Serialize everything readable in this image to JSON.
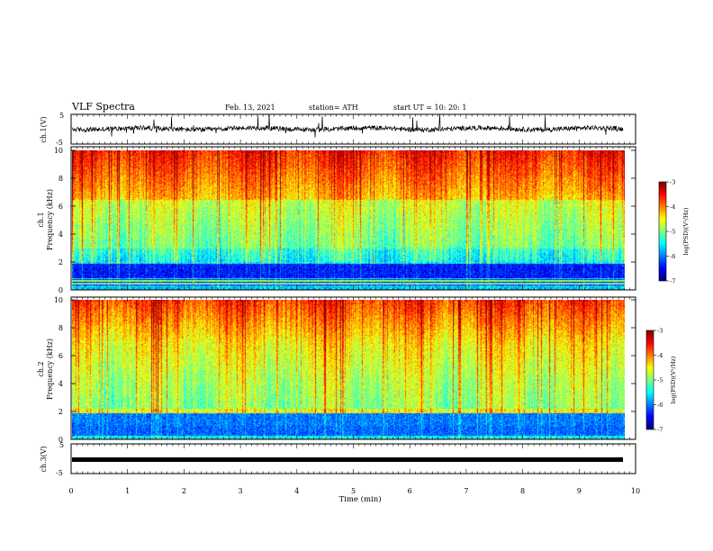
{
  "header": {
    "title": "VLF Spectra",
    "date": "Feb. 13, 2021",
    "station": "station= ATH",
    "start": "start  UT =   10: 20: 1"
  },
  "chart_data": [
    {
      "type": "line",
      "panel": "waveform-ch1",
      "ylabel": "ch.1(V)",
      "ylim": [
        -5,
        5
      ],
      "yticks": [
        "5",
        "-5"
      ],
      "x": [
        0,
        10
      ],
      "description_values": {
        "baseline_v": 0,
        "typical_amplitude_v": 1.5
      }
    },
    {
      "type": "heatmap",
      "panel": "spectrogram-ch1",
      "ylabel": "ch.1\nFrequency (kHz)",
      "ylim": [
        0,
        10
      ],
      "yticks": [
        "0",
        "2",
        "4",
        "6",
        "8",
        "10"
      ],
      "xlim": [
        0,
        10
      ],
      "colorbar": {
        "label": "log(PSD)(V²/Hz)",
        "ticks": [
          "-3",
          "-4",
          "-5",
          "-6",
          "-7"
        ],
        "range": [
          -7,
          -3
        ]
      }
    },
    {
      "type": "heatmap",
      "panel": "spectrogram-ch2",
      "ylabel": "ch.2\nFrequency (kHz)",
      "ylim": [
        0,
        10
      ],
      "yticks": [
        "0",
        "2",
        "4",
        "6",
        "8",
        "10"
      ],
      "xlim": [
        0,
        10
      ],
      "colorbar": {
        "label": "log(PSD)(V²/Hz)",
        "ticks": [
          "-3",
          "-4",
          "-5",
          "-6",
          "-7"
        ],
        "range": [
          -7,
          -3
        ]
      }
    },
    {
      "type": "line",
      "panel": "waveform-ch3",
      "ylabel": "ch.3(V)",
      "ylim": [
        -5,
        5
      ],
      "yticks": [
        "5",
        "-5"
      ],
      "x": [
        0,
        10
      ],
      "description_values": {
        "baseline_v": 0.5
      }
    }
  ],
  "xaxis": {
    "label": "Time (min)",
    "ticks": [
      "0",
      "1",
      "2",
      "3",
      "4",
      "5",
      "6",
      "7",
      "8",
      "9",
      "10"
    ]
  },
  "colors": {
    "colormap": [
      "#000080",
      "#0000ff",
      "#00a0ff",
      "#00ffff",
      "#00ff80",
      "#80ff00",
      "#ffff00",
      "#ff8000",
      "#ff0000",
      "#ffffff"
    ]
  }
}
